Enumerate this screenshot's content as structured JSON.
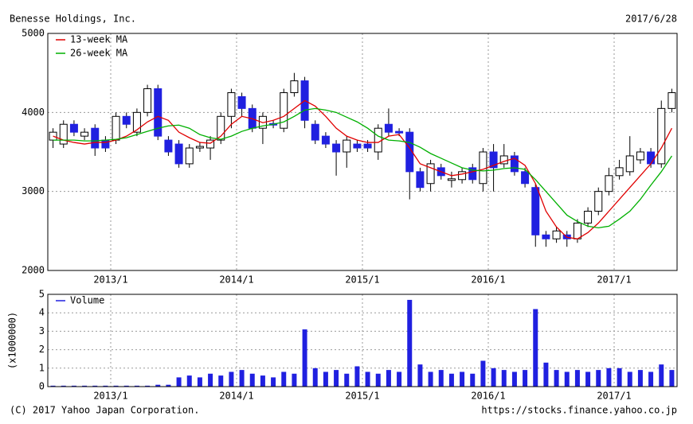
{
  "chart_data": [
    {
      "type": "candlestick",
      "title": "Benesse Holdings, Inc.",
      "date": "2017/6/28",
      "x": [
        "2012/7",
        "2012/8",
        "2012/9",
        "2012/10",
        "2012/11",
        "2012/12",
        "2013/1",
        "2013/2",
        "2013/3",
        "2013/4",
        "2013/5",
        "2013/6",
        "2013/7",
        "2013/8",
        "2013/9",
        "2013/10",
        "2013/11",
        "2013/12",
        "2014/1",
        "2014/2",
        "2014/3",
        "2014/4",
        "2014/5",
        "2014/6",
        "2014/7",
        "2014/8",
        "2014/9",
        "2014/10",
        "2014/11",
        "2014/12",
        "2015/1",
        "2015/2",
        "2015/3",
        "2015/4",
        "2015/5",
        "2015/6",
        "2015/7",
        "2015/8",
        "2015/9",
        "2015/10",
        "2015/11",
        "2015/12",
        "2016/1",
        "2016/2",
        "2016/3",
        "2016/4",
        "2016/5",
        "2016/6",
        "2016/7",
        "2016/8",
        "2016/9",
        "2016/10",
        "2016/11",
        "2016/12",
        "2017/1",
        "2017/2",
        "2017/3",
        "2017/4",
        "2017/5",
        "2017/6"
      ],
      "open": [
        3650,
        3600,
        3850,
        3700,
        3800,
        3650,
        3650,
        3950,
        3750,
        4000,
        4300,
        3650,
        3600,
        3350,
        3550,
        3550,
        3650,
        3950,
        4200,
        4050,
        3800,
        3860,
        3800,
        4250,
        4400,
        3850,
        3700,
        3600,
        3500,
        3600,
        3600,
        3500,
        3850,
        3760,
        3750,
        3250,
        3100,
        3300,
        3140,
        3150,
        3300,
        3100,
        3500,
        3350,
        3450,
        3250,
        3050,
        2450,
        2400,
        2450,
        2400,
        2600,
        2750,
        3000,
        3200,
        3250,
        3400,
        3500,
        3350,
        4050
      ],
      "high": [
        3800,
        3900,
        3900,
        3800,
        3850,
        3700,
        4000,
        4000,
        4050,
        4350,
        4350,
        3700,
        3650,
        3600,
        3620,
        3700,
        4000,
        4300,
        4250,
        4100,
        4000,
        3900,
        4300,
        4500,
        4450,
        3900,
        3750,
        3650,
        3700,
        3650,
        3650,
        3850,
        4050,
        3800,
        3800,
        3300,
        3400,
        3350,
        3250,
        3300,
        3350,
        3550,
        3600,
        3600,
        3500,
        3300,
        3100,
        2500,
        2550,
        2500,
        2650,
        2800,
        3050,
        3300,
        3400,
        3700,
        3550,
        3550,
        4150,
        4300
      ],
      "low": [
        3550,
        3550,
        3700,
        3650,
        3450,
        3500,
        3600,
        3800,
        3700,
        3950,
        3650,
        3450,
        3300,
        3300,
        3500,
        3400,
        3600,
        3800,
        3950,
        3750,
        3600,
        3800,
        3750,
        4200,
        3800,
        3600,
        3550,
        3200,
        3300,
        3500,
        3500,
        3400,
        3700,
        3700,
        2900,
        3000,
        3000,
        3150,
        3050,
        3100,
        3100,
        3000,
        3000,
        3300,
        3200,
        3050,
        2300,
        2300,
        2350,
        2300,
        2350,
        2550,
        2700,
        2950,
        3150,
        3200,
        3350,
        3300,
        3300,
        4000
      ],
      "close": [
        3750,
        3850,
        3750,
        3750,
        3550,
        3550,
        3950,
        3850,
        4000,
        4300,
        3700,
        3500,
        3350,
        3550,
        3570,
        3650,
        3950,
        4250,
        4050,
        3800,
        3950,
        3840,
        4250,
        4400,
        3900,
        3650,
        3600,
        3500,
        3650,
        3550,
        3550,
        3800,
        3750,
        3740,
        3250,
        3050,
        3350,
        3200,
        3160,
        3250,
        3150,
        3500,
        3300,
        3450,
        3250,
        3100,
        2450,
        2400,
        2500,
        2400,
        2600,
        2750,
        3000,
        3200,
        3300,
        3450,
        3500,
        3350,
        4050,
        4250
      ],
      "up_color": "#ffffff",
      "down_color": "#2020e0",
      "series": [
        {
          "name": "13-week MA",
          "color": "#e00000",
          "values": [
            3700,
            3650,
            3620,
            3600,
            3620,
            3620,
            3650,
            3700,
            3780,
            3880,
            3950,
            3900,
            3750,
            3680,
            3620,
            3610,
            3700,
            3850,
            3950,
            3920,
            3870,
            3900,
            3950,
            4050,
            4150,
            4080,
            3950,
            3800,
            3700,
            3650,
            3620,
            3620,
            3700,
            3720,
            3550,
            3350,
            3300,
            3250,
            3200,
            3220,
            3250,
            3280,
            3330,
            3380,
            3420,
            3330,
            3100,
            2750,
            2550,
            2420,
            2400,
            2480,
            2600,
            2750,
            2900,
            3050,
            3200,
            3350,
            3550,
            3800
          ]
        },
        {
          "name": "26-week MA",
          "color": "#00b000",
          "values": [
            3650,
            3650,
            3650,
            3640,
            3640,
            3650,
            3660,
            3680,
            3720,
            3760,
            3800,
            3830,
            3840,
            3800,
            3720,
            3680,
            3660,
            3700,
            3760,
            3800,
            3830,
            3850,
            3880,
            3950,
            4030,
            4050,
            4030,
            4000,
            3940,
            3880,
            3800,
            3700,
            3650,
            3640,
            3620,
            3560,
            3480,
            3420,
            3360,
            3300,
            3270,
            3260,
            3270,
            3290,
            3300,
            3280,
            3150,
            3000,
            2850,
            2700,
            2620,
            2560,
            2540,
            2560,
            2650,
            2750,
            2900,
            3080,
            3250,
            3450
          ]
        }
      ],
      "xlim": [
        "2012/7",
        "2017/7"
      ],
      "xticks": [
        "2013/1",
        "2014/1",
        "2015/1",
        "2016/1",
        "2017/1"
      ],
      "ylim": [
        2000,
        5000
      ],
      "yticks": [
        2000,
        3000,
        4000,
        5000
      ],
      "grid": true
    },
    {
      "type": "bar",
      "y_label": "(x1000000)",
      "x": [
        "2012/7",
        "2012/8",
        "2012/9",
        "2012/10",
        "2012/11",
        "2012/12",
        "2013/1",
        "2013/2",
        "2013/3",
        "2013/4",
        "2013/5",
        "2013/6",
        "2013/7",
        "2013/8",
        "2013/9",
        "2013/10",
        "2013/11",
        "2013/12",
        "2014/1",
        "2014/2",
        "2014/3",
        "2014/4",
        "2014/5",
        "2014/6",
        "2014/7",
        "2014/8",
        "2014/9",
        "2014/10",
        "2014/11",
        "2014/12",
        "2015/1",
        "2015/2",
        "2015/3",
        "2015/4",
        "2015/5",
        "2015/6",
        "2015/7",
        "2015/8",
        "2015/9",
        "2015/10",
        "2015/11",
        "2015/12",
        "2016/1",
        "2016/2",
        "2016/3",
        "2016/4",
        "2016/5",
        "2016/6",
        "2016/7",
        "2016/8",
        "2016/9",
        "2016/10",
        "2016/11",
        "2016/12",
        "2017/1",
        "2017/2",
        "2017/3",
        "2017/4",
        "2017/5",
        "2017/6"
      ],
      "series": [
        {
          "name": "Volume",
          "color": "#2020e0",
          "values": [
            0.05,
            0.05,
            0.05,
            0.05,
            0.05,
            0.05,
            0.05,
            0.05,
            0.05,
            0.05,
            0.1,
            0.1,
            0.5,
            0.6,
            0.5,
            0.7,
            0.6,
            0.8,
            0.9,
            0.7,
            0.6,
            0.5,
            0.8,
            0.7,
            3.1,
            1.0,
            0.8,
            0.9,
            0.7,
            1.1,
            0.8,
            0.7,
            0.9,
            0.8,
            4.7,
            1.2,
            0.8,
            0.9,
            0.7,
            0.8,
            0.7,
            1.4,
            1.0,
            0.9,
            0.8,
            0.9,
            4.2,
            1.3,
            0.9,
            0.8,
            0.9,
            0.8,
            0.9,
            1.0,
            1.0,
            0.8,
            0.9,
            0.8,
            1.2,
            0.9
          ]
        }
      ],
      "xlim": [
        "2012/7",
        "2017/7"
      ],
      "xticks": [
        "2013/1",
        "2014/1",
        "2015/1",
        "2016/1",
        "2017/1"
      ],
      "ylim": [
        0,
        5
      ],
      "yticks": [
        0,
        1,
        2,
        3,
        4,
        5
      ],
      "grid": true
    }
  ],
  "footer": {
    "copyright": "(C) 2017 Yahoo Japan Corporation.",
    "url": "https://stocks.finance.yahoo.co.jp"
  }
}
